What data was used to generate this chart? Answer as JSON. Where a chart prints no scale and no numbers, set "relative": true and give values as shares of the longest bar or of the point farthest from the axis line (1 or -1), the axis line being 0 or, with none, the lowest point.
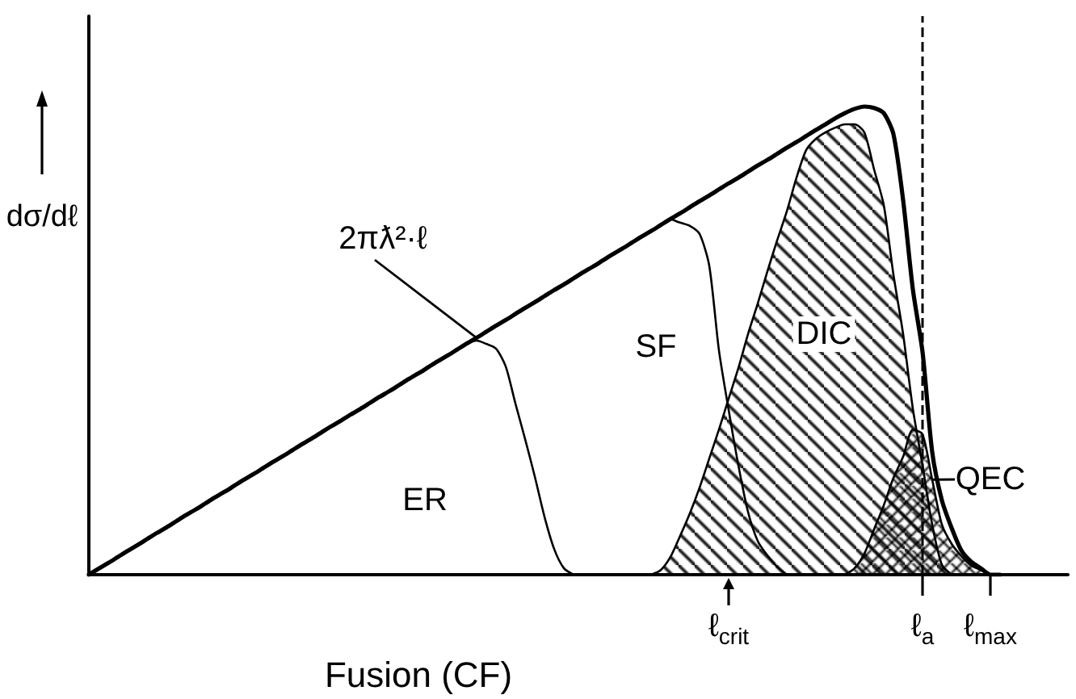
{
  "chart_data": {
    "type": "line",
    "relative": true,
    "xlabel": "Fusion (CF)",
    "ylabel": "dσ/dℓ",
    "categories": [
      null,
      null,
      null,
      null,
      null,
      null,
      null,
      null,
      null,
      null,
      null,
      null,
      null,
      null,
      null,
      null,
      null,
      null,
      null,
      null,
      null,
      null,
      null,
      null,
      null,
      null,
      null,
      null,
      null,
      null,
      null,
      null,
      null,
      null,
      null,
      null,
      null,
      null,
      null,
      null,
      null,
      null,
      null,
      null,
      null,
      null,
      null,
      null,
      null,
      null,
      null,
      null,
      null,
      null,
      null,
      null,
      null,
      null,
      null,
      null,
      null,
      null,
      null,
      null,
      null,
      null,
      "ℓ$_{crit}$",
      null,
      null,
      null,
      null,
      null,
      null,
      null,
      null,
      null,
      null,
      null,
      null,
      null,
      null,
      null,
      null,
      null,
      null,
      null,
      "ℓ$_{a}$",
      null,
      null,
      null,
      null,
      null,
      null,
      "ℓ$_{max}$",
      null,
      null,
      null,
      null,
      null,
      null,
      null,
      null
    ],
    "series": [
      {
        "name": "2πƛ²·ℓ",
        "color": "#000000",
        "values": [
          0,
          0.013,
          0.025,
          0.038,
          0.051,
          0.063,
          0.076,
          0.089,
          0.101,
          0.114,
          0.127,
          0.139,
          0.152,
          0.165,
          0.177,
          0.19,
          0.203,
          0.215,
          0.228,
          0.241,
          0.253,
          0.266,
          0.279,
          0.291,
          0.304,
          0.317,
          0.329,
          0.342,
          0.354,
          0.367,
          0.38,
          0.392,
          0.405,
          0.418,
          0.43,
          0.443,
          0.456,
          0.468,
          0.481,
          0.494,
          0.506,
          0.519,
          0.532,
          0.544,
          0.557,
          0.57,
          0.582,
          0.595,
          0.608,
          0.62,
          0.633,
          0.646,
          0.658,
          0.671,
          0.684,
          0.696,
          0.709,
          0.722,
          0.734,
          0.747,
          0.76,
          0.772,
          0.785,
          0.798,
          0.81,
          0.823,
          0.836,
          0.848,
          0.861,
          0.874,
          0.886,
          0.899,
          0.912,
          0.924,
          0.937,
          0.95,
          0.962,
          0.975,
          0.986,
          0.995,
          1,
          0.997,
          0.986,
          0.941,
          0.8,
          0.61,
          0.476,
          0.262,
          0.159,
          0.1,
          0.052,
          0.028,
          0.014,
          0,
          0,
          null,
          null,
          null,
          null,
          null,
          null,
          null
        ]
      },
      {
        "name": "ER",
        "color": "#000000",
        "values": [
          null,
          null,
          null,
          null,
          null,
          null,
          null,
          null,
          null,
          null,
          null,
          null,
          null,
          null,
          null,
          null,
          null,
          null,
          null,
          null,
          null,
          null,
          null,
          null,
          null,
          null,
          null,
          null,
          null,
          null,
          null,
          null,
          null,
          null,
          null,
          null,
          null,
          null,
          null,
          0.494,
          0.5,
          0.493,
          0.483,
          0.445,
          0.366,
          0.29,
          0.21,
          0.124,
          0.055,
          0.014,
          0,
          null,
          null,
          null,
          null,
          null,
          null,
          null,
          null,
          null,
          null,
          null,
          null,
          null,
          null,
          null,
          null,
          null,
          null,
          null,
          null,
          null,
          null,
          null,
          null,
          null,
          null,
          null,
          null,
          null,
          null,
          null,
          null,
          null,
          null,
          null,
          null,
          null,
          null,
          null,
          null,
          null,
          null,
          null,
          null,
          null,
          null,
          null,
          null,
          null,
          null,
          null
        ]
      },
      {
        "name": "SF",
        "color": "#000000",
        "values": [
          null,
          null,
          null,
          null,
          null,
          null,
          null,
          null,
          null,
          null,
          null,
          null,
          null,
          null,
          null,
          null,
          null,
          null,
          null,
          null,
          null,
          null,
          null,
          null,
          null,
          null,
          null,
          null,
          null,
          null,
          null,
          null,
          null,
          null,
          null,
          null,
          null,
          null,
          null,
          null,
          null,
          null,
          null,
          null,
          null,
          null,
          null,
          null,
          null,
          null,
          null,
          null,
          null,
          null,
          null,
          null,
          null,
          null,
          null,
          null,
          0.76,
          0.752,
          0.745,
          0.728,
          0.66,
          0.479,
          0.352,
          0.234,
          0.134,
          0.072,
          0.041,
          0.017,
          0,
          null,
          null,
          null,
          null,
          null,
          null,
          null,
          null,
          null,
          null,
          null,
          null,
          null,
          null,
          null,
          null,
          null,
          null,
          null,
          null,
          null,
          null,
          null,
          null,
          null,
          null,
          null,
          null,
          null
        ]
      },
      {
        "name": "DIC",
        "type": "area",
        "color": "#000000",
        "values": [
          null,
          null,
          null,
          null,
          null,
          null,
          null,
          null,
          null,
          null,
          null,
          null,
          null,
          null,
          null,
          null,
          null,
          null,
          null,
          null,
          null,
          null,
          null,
          null,
          null,
          null,
          null,
          null,
          null,
          null,
          null,
          null,
          null,
          null,
          null,
          null,
          null,
          null,
          null,
          null,
          null,
          null,
          null,
          null,
          null,
          null,
          null,
          null,
          null,
          null,
          null,
          null,
          null,
          null,
          null,
          null,
          null,
          null,
          0,
          0.01,
          0.038,
          0.083,
          0.131,
          0.186,
          0.248,
          0.31,
          0.376,
          0.441,
          0.514,
          0.579,
          0.648,
          0.714,
          0.776,
          0.848,
          0.907,
          0.931,
          0.945,
          0.955,
          0.962,
          0.962,
          0.945,
          0.866,
          0.79,
          0.641,
          0.514,
          0.355,
          0.234,
          0.107,
          0.021,
          0,
          null,
          null,
          null,
          null,
          null,
          null,
          null,
          null,
          null,
          null,
          null,
          null
        ]
      },
      {
        "name": "QEC",
        "type": "area",
        "color": "#000000",
        "values": [
          null,
          null,
          null,
          null,
          null,
          null,
          null,
          null,
          null,
          null,
          null,
          null,
          null,
          null,
          null,
          null,
          null,
          null,
          null,
          null,
          null,
          null,
          null,
          null,
          null,
          null,
          null,
          null,
          null,
          null,
          null,
          null,
          null,
          null,
          null,
          null,
          null,
          null,
          null,
          null,
          null,
          null,
          null,
          null,
          null,
          null,
          null,
          null,
          null,
          null,
          null,
          null,
          null,
          null,
          null,
          null,
          null,
          null,
          null,
          null,
          null,
          null,
          null,
          null,
          null,
          null,
          null,
          null,
          null,
          null,
          null,
          null,
          null,
          null,
          null,
          null,
          null,
          null,
          0,
          0.014,
          0.045,
          0.097,
          0.148,
          0.207,
          0.252,
          0.31,
          0.3,
          0.203,
          0.107,
          0.066,
          0.04,
          0.02,
          0.01,
          0,
          null,
          null,
          null,
          null,
          null,
          null,
          null,
          null
        ]
      }
    ],
    "ref_lines": [
      {
        "axis": "x",
        "value": "ℓ$_{a}$",
        "line_style": "dashed",
        "color": "#000000"
      }
    ]
  }
}
